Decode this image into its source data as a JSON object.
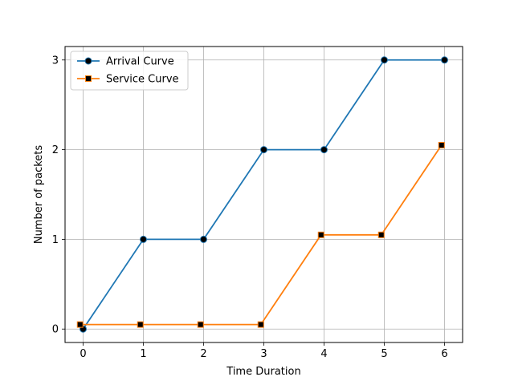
{
  "chart_data": {
    "type": "line",
    "title": "",
    "xlabel": "Time Duration",
    "ylabel": "Number of packets",
    "xlim": [
      -0.3,
      6.3
    ],
    "ylim": [
      -0.15,
      3.15
    ],
    "xticks": [
      0,
      1,
      2,
      3,
      4,
      5,
      6
    ],
    "yticks": [
      0,
      1,
      2,
      3
    ],
    "grid": true,
    "legend_position": "top-left",
    "series": [
      {
        "name": "Arrival Curve",
        "color": "#1f77b4",
        "marker": "circle",
        "x": [
          0,
          1,
          2,
          3,
          4,
          5,
          6
        ],
        "y": [
          0,
          1,
          1,
          2,
          2,
          3,
          3
        ]
      },
      {
        "name": "Service Curve",
        "color": "#ff7f0e",
        "marker": "square",
        "x": [
          -0.05,
          0.95,
          1.95,
          2.95,
          3.95,
          4.95,
          5.95
        ],
        "y": [
          0.05,
          0.05,
          0.05,
          0.05,
          1.05,
          1.05,
          2.05
        ]
      }
    ]
  }
}
